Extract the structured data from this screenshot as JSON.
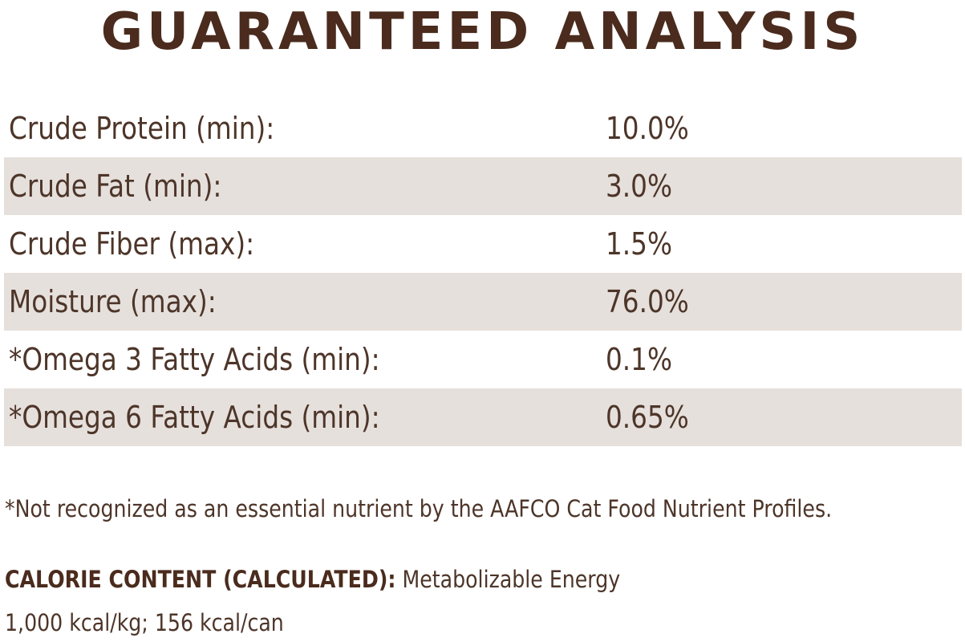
{
  "title": "GUARANTEED ANALYSIS",
  "analysis": [
    {
      "label": "Crude Protein (min):",
      "value": "10.0%",
      "shaded": false
    },
    {
      "label": "Crude Fat (min):",
      "value": "3.0%",
      "shaded": true
    },
    {
      "label": "Crude Fiber (max):",
      "value": "1.5%",
      "shaded": false
    },
    {
      "label": "Moisture (max):",
      "value": "76.0%",
      "shaded": true
    },
    {
      "label": "*Omega 3 Fatty Acids (min):",
      "value": "0.1%",
      "shaded": false
    },
    {
      "label": "*Omega 6 Fatty Acids (min):",
      "value": "0.65%",
      "shaded": true
    }
  ],
  "footnote": "*Not recognized as an essential nutrient by the AAFCO Cat Food Nutrient Profiles.",
  "calorie": {
    "label": "CALORIE CONTENT (CALCULATED):",
    "text": " Metabolizable Energy",
    "values": "1,000 kcal/kg; 156 kcal/can"
  },
  "colors": {
    "title": "#4a2b1d",
    "text": "#4d3529",
    "row_shade": "#e6e0dc",
    "background": "#ffffff"
  }
}
